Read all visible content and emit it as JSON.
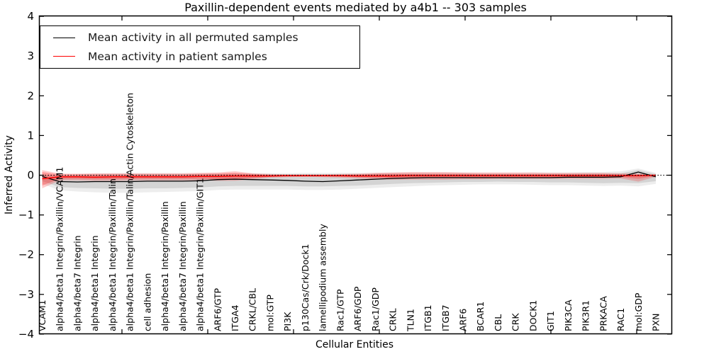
{
  "title": "Paxillin-dependent events mediated by a4b1 -- 303 samples",
  "axes": {
    "ylabel": "Inferred Activity",
    "xlabel": "Cellular Entities",
    "y_tick_values": [
      4,
      3,
      2,
      1,
      0,
      -1,
      -2,
      -3,
      -4
    ],
    "y_tick_labels": [
      "4",
      "3",
      "2",
      "1",
      "0",
      "−1",
      "−2",
      "−3",
      "−4"
    ]
  },
  "legend": {
    "entries": [
      {
        "label": "Mean activity in all permuted samples",
        "color": "#000000"
      },
      {
        "label": "Mean activity in patient samples",
        "color": "#ff0000"
      }
    ]
  },
  "chart_data": {
    "type": "line",
    "title": "Paxillin-dependent events mediated by a4b1 -- 303 samples",
    "xlabel": "Cellular Entities",
    "ylabel": "Inferred Activity",
    "ylim": [
      -4,
      4
    ],
    "grid": false,
    "legend_position": "upper left",
    "zero_reference_line": 0,
    "categories": [
      "VCAM1",
      "alpha4/beta1 Integrin/Paxillin/VCAM1",
      "alpha4/beta7 Integrin",
      "alpha4/beta1 Integrin",
      "alpha4/beta1 Integrin/Paxillin/Talin",
      "alpha4/beta1 Integrin/Paxillin/Talin/Actin Cytoskeleton",
      "cell adhesion",
      "alpha4/beta1 Integrin/Paxillin",
      "alpha4/beta7 Integrin/Paxillin",
      "alpha4/beta1 Integrin/Paxillin/GIT1",
      "ARF6/GTP",
      "ITGA4",
      "CRKL/CBL",
      "mol:GTP",
      "PI3K",
      "p130Cas/Crk/Dock1",
      "lamellipodium assembly",
      "Rac1/GTP",
      "ARF6/GDP",
      "Rac1/GDP",
      "CRKL",
      "TLN1",
      "ITGB1",
      "ITGB7",
      "ARF6",
      "BCAR1",
      "CBL",
      "CRK",
      "DOCK1",
      "GIT1",
      "PIK3CA",
      "PIK3R1",
      "PRKACA",
      "RAC1",
      "mol:GDP",
      "PXN"
    ],
    "series": [
      {
        "name": "Mean activity in all permuted samples",
        "color": "#000000",
        "line_width": 1.3,
        "values": [
          -0.03,
          -0.16,
          -0.17,
          -0.16,
          -0.16,
          -0.16,
          -0.15,
          -0.15,
          -0.15,
          -0.14,
          -0.11,
          -0.1,
          -0.11,
          -0.12,
          -0.13,
          -0.15,
          -0.16,
          -0.14,
          -0.12,
          -0.1,
          -0.08,
          -0.07,
          -0.06,
          -0.06,
          -0.06,
          -0.06,
          -0.06,
          -0.06,
          -0.06,
          -0.06,
          -0.05,
          -0.05,
          -0.05,
          -0.04,
          0.08,
          -0.04
        ],
        "band_inner": {
          "fill": "rgba(0,0,0,0.10)",
          "hi": [
            0.0,
            -0.02,
            -0.01,
            0.0,
            0.01,
            0.01,
            0.01,
            0.01,
            0.01,
            0.01,
            0.02,
            0.02,
            0.02,
            0.02,
            0.02,
            0.02,
            0.02,
            0.02,
            0.02,
            0.03,
            0.03,
            0.03,
            0.03,
            0.03,
            0.03,
            0.03,
            0.03,
            0.03,
            0.03,
            0.03,
            0.03,
            0.04,
            0.04,
            0.05,
            0.13,
            0.03
          ],
          "lo": [
            -0.15,
            -0.3,
            -0.32,
            -0.33,
            -0.34,
            -0.34,
            -0.33,
            -0.33,
            -0.32,
            -0.31,
            -0.28,
            -0.27,
            -0.27,
            -0.27,
            -0.27,
            -0.28,
            -0.28,
            -0.27,
            -0.26,
            -0.24,
            -0.22,
            -0.2,
            -0.19,
            -0.18,
            -0.17,
            -0.17,
            -0.16,
            -0.17,
            -0.17,
            -0.18,
            -0.18,
            -0.19,
            -0.2,
            -0.19,
            -0.2,
            -0.15
          ]
        },
        "band_outer": {
          "fill": "rgba(0,0,0,0.07)",
          "hi": [
            0.02,
            0.0,
            0.02,
            0.04,
            0.05,
            0.05,
            0.05,
            0.05,
            0.05,
            0.05,
            0.05,
            0.05,
            0.05,
            0.05,
            0.05,
            0.06,
            0.06,
            0.06,
            0.06,
            0.06,
            0.07,
            0.07,
            0.07,
            0.07,
            0.07,
            0.06,
            0.06,
            0.06,
            0.07,
            0.07,
            0.07,
            0.08,
            0.08,
            0.1,
            0.17,
            0.06
          ],
          "lo": [
            -0.22,
            -0.38,
            -0.41,
            -0.43,
            -0.44,
            -0.44,
            -0.43,
            -0.42,
            -0.41,
            -0.4,
            -0.37,
            -0.36,
            -0.36,
            -0.36,
            -0.36,
            -0.37,
            -0.37,
            -0.36,
            -0.34,
            -0.32,
            -0.3,
            -0.28,
            -0.26,
            -0.25,
            -0.24,
            -0.23,
            -0.23,
            -0.23,
            -0.24,
            -0.25,
            -0.25,
            -0.26,
            -0.27,
            -0.26,
            -0.28,
            -0.22
          ]
        }
      },
      {
        "name": "Mean activity in patient samples",
        "color": "#ff0000",
        "line_width": 1.5,
        "values": [
          -0.09,
          -0.04,
          -0.04,
          -0.05,
          -0.04,
          -0.04,
          -0.04,
          -0.04,
          -0.04,
          -0.03,
          -0.03,
          -0.02,
          -0.02,
          -0.02,
          -0.01,
          -0.01,
          -0.01,
          -0.01,
          -0.02,
          -0.02,
          -0.02,
          -0.01,
          -0.01,
          -0.01,
          -0.01,
          -0.01,
          -0.01,
          -0.01,
          -0.01,
          -0.01,
          -0.01,
          -0.01,
          -0.01,
          -0.01,
          -0.01,
          0.0
        ],
        "band_inner": {
          "fill": "rgba(255,0,0,0.25)",
          "hi": [
            0.08,
            0.02,
            0.02,
            0.02,
            0.02,
            0.02,
            0.02,
            0.02,
            0.02,
            0.03,
            0.04,
            0.06,
            0.03,
            0.01,
            0.01,
            0.01,
            0.01,
            0.01,
            0.02,
            0.03,
            0.04,
            0.04,
            0.04,
            0.04,
            0.04,
            0.03,
            0.03,
            0.03,
            0.03,
            0.03,
            0.03,
            0.03,
            0.03,
            0.02,
            0.02,
            0.01
          ],
          "lo": [
            -0.26,
            -0.09,
            -0.09,
            -0.1,
            -0.1,
            -0.09,
            -0.09,
            -0.09,
            -0.09,
            -0.09,
            -0.1,
            -0.1,
            -0.07,
            -0.04,
            -0.03,
            -0.03,
            -0.03,
            -0.04,
            -0.05,
            -0.06,
            -0.07,
            -0.07,
            -0.07,
            -0.07,
            -0.06,
            -0.06,
            -0.06,
            -0.06,
            -0.06,
            -0.06,
            -0.06,
            -0.06,
            -0.06,
            -0.05,
            -0.09,
            -0.02
          ]
        },
        "band_outer": {
          "fill": "rgba(255,0,0,0.20)",
          "hi": [
            0.13,
            0.04,
            0.04,
            0.05,
            0.05,
            0.05,
            0.05,
            0.05,
            0.05,
            0.06,
            0.07,
            0.1,
            0.05,
            0.03,
            0.02,
            0.02,
            0.02,
            0.03,
            0.04,
            0.06,
            0.07,
            0.08,
            0.08,
            0.08,
            0.07,
            0.07,
            0.07,
            0.07,
            0.07,
            0.06,
            0.06,
            0.06,
            0.06,
            0.05,
            0.04,
            0.02
          ],
          "lo": [
            -0.33,
            -0.13,
            -0.13,
            -0.14,
            -0.14,
            -0.13,
            -0.13,
            -0.13,
            -0.13,
            -0.13,
            -0.14,
            -0.14,
            -0.1,
            -0.06,
            -0.05,
            -0.04,
            -0.05,
            -0.06,
            -0.08,
            -0.1,
            -0.11,
            -0.11,
            -0.11,
            -0.11,
            -0.1,
            -0.1,
            -0.09,
            -0.09,
            -0.09,
            -0.09,
            -0.09,
            -0.09,
            -0.09,
            -0.08,
            -0.16,
            -0.04
          ]
        }
      }
    ]
  }
}
